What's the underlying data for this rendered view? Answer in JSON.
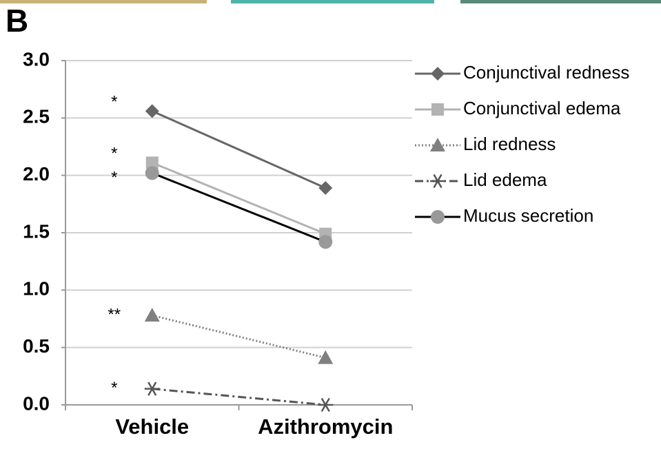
{
  "panel_label": "B",
  "chart_data": {
    "type": "line",
    "categories": [
      "Vehicle",
      "Azithromycin"
    ],
    "ylim": [
      0,
      3
    ],
    "yticks": [
      {
        "value": 0,
        "label": "0.0"
      },
      {
        "value": 0.5,
        "label": "0.5"
      },
      {
        "value": 1,
        "label": "1.0"
      },
      {
        "value": 1.5,
        "label": "1.5"
      },
      {
        "value": 2,
        "label": "2.0"
      },
      {
        "value": 2.5,
        "label": "2.5"
      },
      {
        "value": 3,
        "label": "3.0"
      }
    ],
    "grid": true,
    "legend": "right",
    "series": [
      {
        "name": "Conjunctival redness",
        "color": "#666666",
        "marker_color": "#666666",
        "marker": "diamond",
        "dash": "solid",
        "values": [
          2.56,
          1.89
        ],
        "annotation": "*"
      },
      {
        "name": "Conjunctival edema",
        "color": "#b3b3b3",
        "marker_color": "#b3b3b3",
        "marker": "square",
        "dash": "solid",
        "values": [
          2.11,
          1.49
        ],
        "annotation": "*"
      },
      {
        "name": "Lid redness",
        "color": "#808080",
        "marker_color": "#808080",
        "marker": "triangle",
        "dash": "dotted",
        "values": [
          0.78,
          0.41
        ],
        "annotation": "**"
      },
      {
        "name": "Lid edema",
        "color": "#555555",
        "marker_color": "#555555",
        "marker": "asterisk",
        "dash": "dashdot",
        "values": [
          0.14,
          0.0
        ],
        "annotation": "*"
      },
      {
        "name": "Mucus secretion",
        "color": "#000000",
        "marker_color": "#999999",
        "marker": "circle",
        "dash": "solid",
        "values": [
          2.02,
          1.42
        ],
        "annotation": "*"
      }
    ]
  }
}
